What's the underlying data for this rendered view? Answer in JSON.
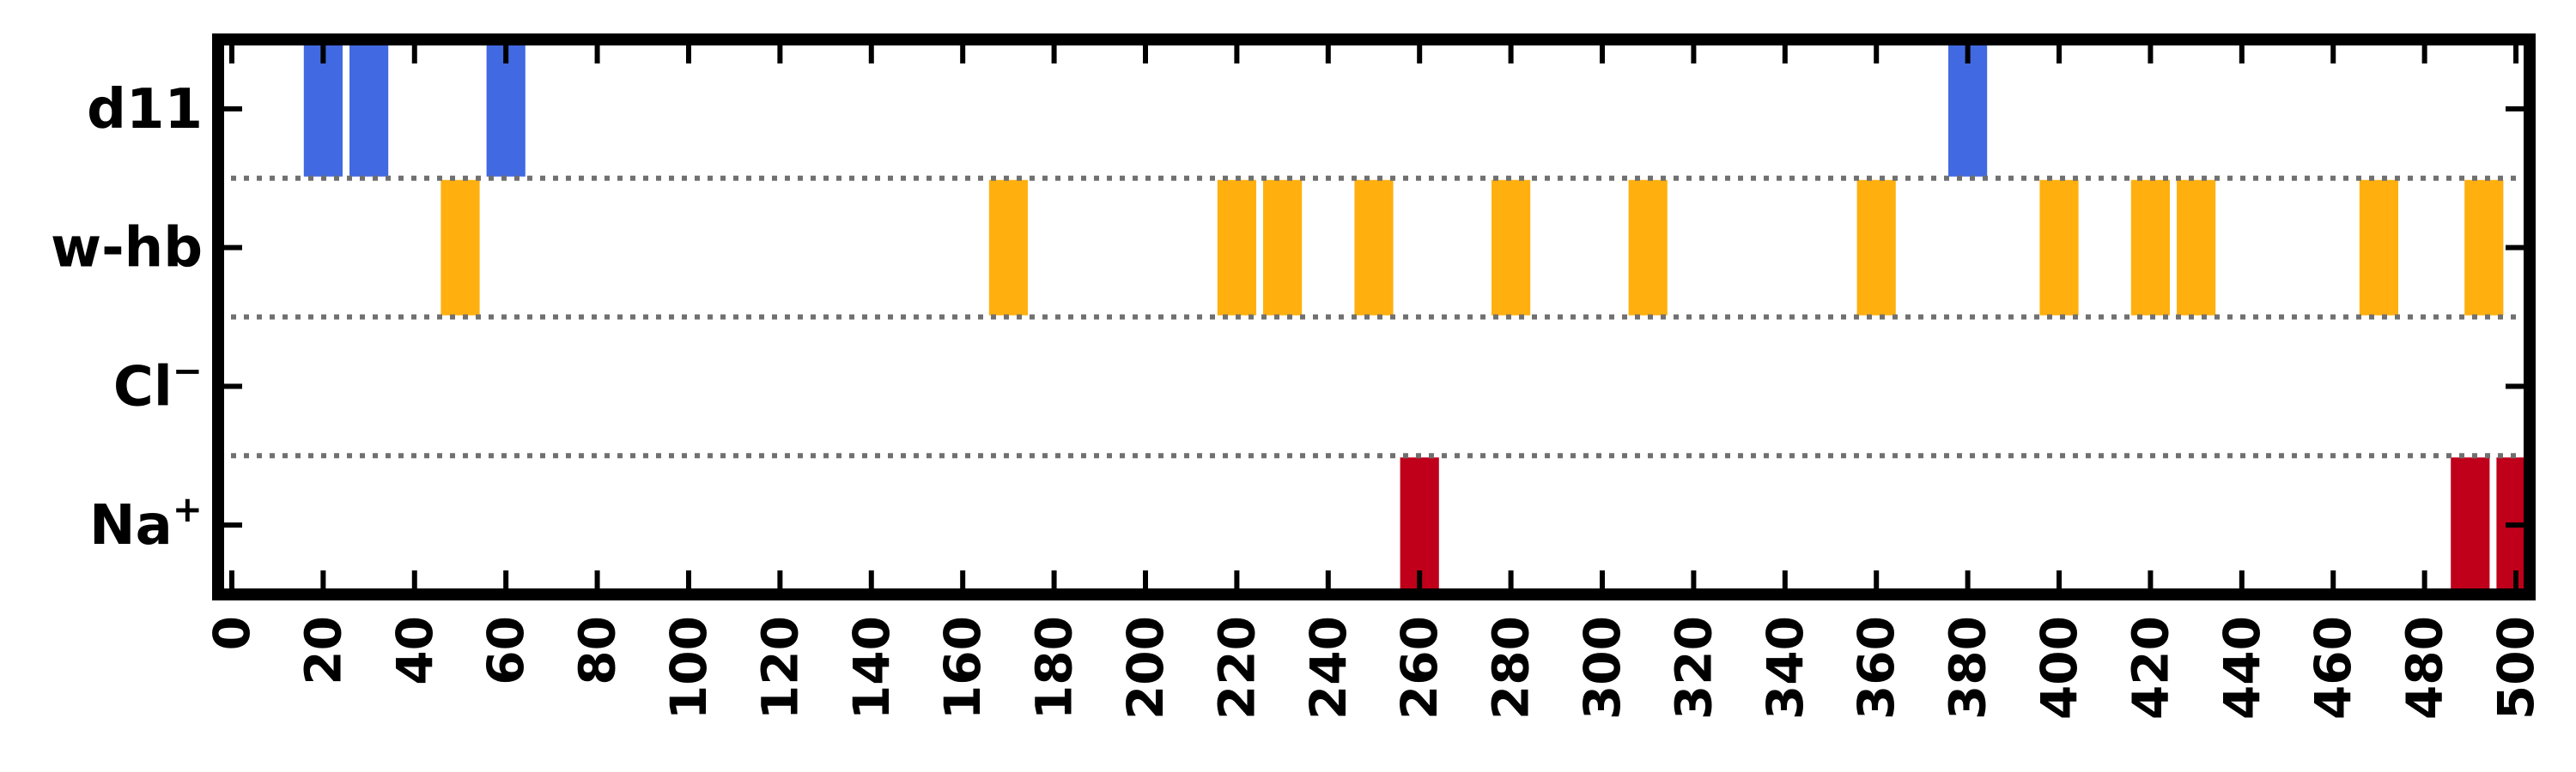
{
  "chart_data": {
    "type": "bar",
    "orientation": "event-raster",
    "xlim": [
      -3,
      503
    ],
    "xticks": [
      0,
      20,
      40,
      60,
      80,
      100,
      120,
      140,
      160,
      180,
      200,
      220,
      240,
      260,
      280,
      300,
      320,
      340,
      360,
      380,
      400,
      420,
      440,
      460,
      480,
      500
    ],
    "xtick_labels": [
      "0",
      "20",
      "40",
      "60",
      "80",
      "100",
      "120",
      "140",
      "160",
      "180",
      "200",
      "220",
      "240",
      "260",
      "280",
      "300",
      "320",
      "340",
      "360",
      "380",
      "400",
      "420",
      "440",
      "460",
      "480",
      "500"
    ],
    "grid": false,
    "event_width": 8.5,
    "rows": [
      {
        "label": "d11",
        "color": "#4169e1",
        "events": [
          20,
          30,
          60,
          380
        ]
      },
      {
        "label": "w-hb",
        "color": "#ffb00f",
        "events": [
          50,
          170,
          220,
          230,
          250,
          280,
          310,
          360,
          400,
          420,
          430,
          470,
          493
        ]
      },
      {
        "label": "Cl",
        "superscript": "−",
        "color": "#ffb00f",
        "events": []
      },
      {
        "label": "Na",
        "superscript": "+",
        "color": "#c0001b",
        "events": [
          260,
          490,
          500
        ]
      }
    ]
  }
}
